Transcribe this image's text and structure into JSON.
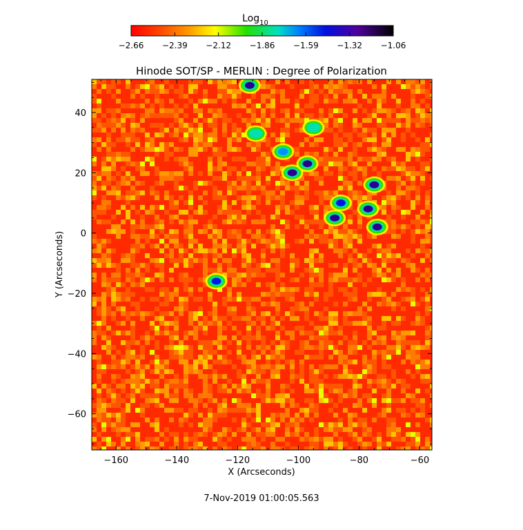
{
  "chart_data": {
    "type": "heatmap",
    "title": "Hinode SOT/SP - MERLIN : Degree of Polarization",
    "xlabel": "X (Arcseconds)",
    "ylabel": "Y (Arcseconds)",
    "xlim": [
      -168,
      -56
    ],
    "ylim": [
      -72,
      51
    ],
    "xticks": [
      -160,
      -140,
      -120,
      -100,
      -80,
      -60
    ],
    "yticks": [
      -60,
      -40,
      -20,
      0,
      20,
      40
    ],
    "colorbar": {
      "label_base": "Log",
      "label_sub": "10",
      "ticks": [
        "-2.66",
        "-2.39",
        "-2.12",
        "-1.86",
        "-1.59",
        "-1.32",
        "-1.06"
      ],
      "range": [
        -2.66,
        -1.06
      ]
    },
    "polarization_features": [
      {
        "x": -102,
        "y": 20,
        "level": -1.2
      },
      {
        "x": -97,
        "y": 23,
        "level": -1.3
      },
      {
        "x": -75,
        "y": 16,
        "level": -1.2
      },
      {
        "x": -77,
        "y": 8,
        "level": -1.3
      },
      {
        "x": -88,
        "y": 5,
        "level": -1.3
      },
      {
        "x": -86,
        "y": 10,
        "level": -1.5
      },
      {
        "x": -116,
        "y": 49,
        "level": -1.3
      },
      {
        "x": -114,
        "y": 33,
        "level": -1.7
      },
      {
        "x": -127,
        "y": -16,
        "level": -1.4
      },
      {
        "x": -95,
        "y": 35,
        "level": -1.7
      },
      {
        "x": -105,
        "y": 27,
        "level": -1.6
      },
      {
        "x": -74,
        "y": 2,
        "level": -1.3
      }
    ]
  },
  "footer": {
    "timestamp": "7-Nov-2019 01:00:05.563"
  }
}
